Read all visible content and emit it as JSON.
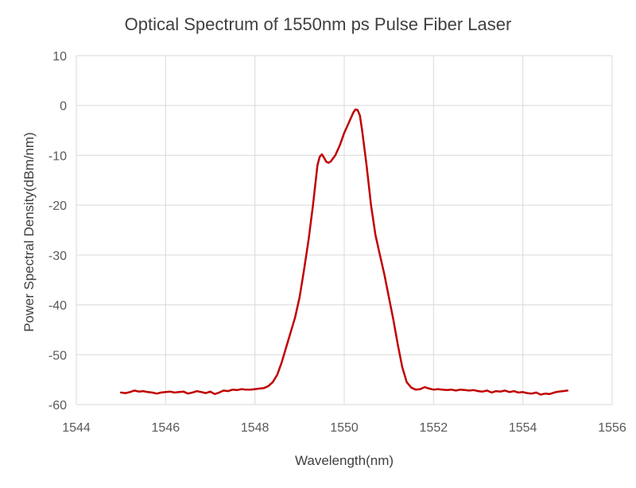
{
  "chart_data": {
    "type": "line",
    "title": "Optical Spectrum of 1550nm ps Pulse Fiber Laser",
    "xlabel": "Wavelength(nm)",
    "ylabel": "Power Spectral Density(dBm/nm)",
    "xlim": [
      1544,
      1556
    ],
    "ylim": [
      -60,
      10
    ],
    "x_ticks": [
      1544,
      1546,
      1548,
      1550,
      1552,
      1554,
      1556
    ],
    "y_ticks": [
      10,
      0,
      -10,
      -20,
      -30,
      -40,
      -50,
      -60
    ],
    "grid": true,
    "legend": "none",
    "series": [
      {
        "color": "#c00000",
        "points": [
          [
            1545.0,
            -57.6
          ],
          [
            1545.1,
            -57.7
          ],
          [
            1545.2,
            -57.5
          ],
          [
            1545.3,
            -57.2
          ],
          [
            1545.4,
            -57.4
          ],
          [
            1545.5,
            -57.3
          ],
          [
            1545.6,
            -57.5
          ],
          [
            1545.7,
            -57.6
          ],
          [
            1545.8,
            -57.8
          ],
          [
            1545.9,
            -57.6
          ],
          [
            1546.0,
            -57.5
          ],
          [
            1546.1,
            -57.4
          ],
          [
            1546.2,
            -57.6
          ],
          [
            1546.3,
            -57.5
          ],
          [
            1546.4,
            -57.4
          ],
          [
            1546.5,
            -57.8
          ],
          [
            1546.6,
            -57.6
          ],
          [
            1546.7,
            -57.3
          ],
          [
            1546.8,
            -57.5
          ],
          [
            1546.9,
            -57.7
          ],
          [
            1547.0,
            -57.4
          ],
          [
            1547.1,
            -57.9
          ],
          [
            1547.2,
            -57.6
          ],
          [
            1547.3,
            -57.2
          ],
          [
            1547.4,
            -57.3
          ],
          [
            1547.5,
            -57.0
          ],
          [
            1547.6,
            -57.1
          ],
          [
            1547.7,
            -56.9
          ],
          [
            1547.8,
            -57.0
          ],
          [
            1547.9,
            -57.0
          ],
          [
            1548.0,
            -56.9
          ],
          [
            1548.1,
            -56.8
          ],
          [
            1548.2,
            -56.7
          ],
          [
            1548.3,
            -56.3
          ],
          [
            1548.4,
            -55.5
          ],
          [
            1548.5,
            -54.0
          ],
          [
            1548.6,
            -51.5
          ],
          [
            1548.7,
            -48.5
          ],
          [
            1548.8,
            -45.5
          ],
          [
            1548.9,
            -42.5
          ],
          [
            1549.0,
            -38.5
          ],
          [
            1549.1,
            -33.0
          ],
          [
            1549.2,
            -27.0
          ],
          [
            1549.3,
            -20.0
          ],
          [
            1549.4,
            -12.0
          ],
          [
            1549.45,
            -10.3
          ],
          [
            1549.5,
            -9.8
          ],
          [
            1549.55,
            -10.5
          ],
          [
            1549.6,
            -11.3
          ],
          [
            1549.65,
            -11.5
          ],
          [
            1549.7,
            -11.2
          ],
          [
            1549.8,
            -10.0
          ],
          [
            1549.9,
            -8.0
          ],
          [
            1550.0,
            -5.5
          ],
          [
            1550.1,
            -3.5
          ],
          [
            1550.2,
            -1.5
          ],
          [
            1550.25,
            -0.8
          ],
          [
            1550.3,
            -0.9
          ],
          [
            1550.35,
            -2.0
          ],
          [
            1550.4,
            -5.0
          ],
          [
            1550.5,
            -12.0
          ],
          [
            1550.6,
            -20.0
          ],
          [
            1550.7,
            -26.0
          ],
          [
            1550.8,
            -30.0
          ],
          [
            1550.9,
            -34.0
          ],
          [
            1551.0,
            -38.5
          ],
          [
            1551.1,
            -43.0
          ],
          [
            1551.2,
            -48.0
          ],
          [
            1551.3,
            -52.5
          ],
          [
            1551.4,
            -55.5
          ],
          [
            1551.5,
            -56.6
          ],
          [
            1551.6,
            -57.0
          ],
          [
            1551.7,
            -56.9
          ],
          [
            1551.8,
            -56.5
          ],
          [
            1551.9,
            -56.8
          ],
          [
            1552.0,
            -57.0
          ],
          [
            1552.1,
            -56.9
          ],
          [
            1552.2,
            -57.0
          ],
          [
            1552.3,
            -57.1
          ],
          [
            1552.4,
            -57.0
          ],
          [
            1552.5,
            -57.2
          ],
          [
            1552.6,
            -57.0
          ],
          [
            1552.7,
            -57.1
          ],
          [
            1552.8,
            -57.2
          ],
          [
            1552.9,
            -57.1
          ],
          [
            1553.0,
            -57.3
          ],
          [
            1553.1,
            -57.4
          ],
          [
            1553.2,
            -57.2
          ],
          [
            1553.3,
            -57.6
          ],
          [
            1553.4,
            -57.3
          ],
          [
            1553.5,
            -57.4
          ],
          [
            1553.6,
            -57.2
          ],
          [
            1553.7,
            -57.5
          ],
          [
            1553.8,
            -57.3
          ],
          [
            1553.9,
            -57.6
          ],
          [
            1554.0,
            -57.5
          ],
          [
            1554.1,
            -57.7
          ],
          [
            1554.2,
            -57.8
          ],
          [
            1554.3,
            -57.6
          ],
          [
            1554.4,
            -58.0
          ],
          [
            1554.5,
            -57.8
          ],
          [
            1554.6,
            -57.9
          ],
          [
            1554.7,
            -57.6
          ],
          [
            1554.8,
            -57.4
          ],
          [
            1554.9,
            -57.3
          ],
          [
            1555.0,
            -57.2
          ]
        ]
      }
    ]
  }
}
